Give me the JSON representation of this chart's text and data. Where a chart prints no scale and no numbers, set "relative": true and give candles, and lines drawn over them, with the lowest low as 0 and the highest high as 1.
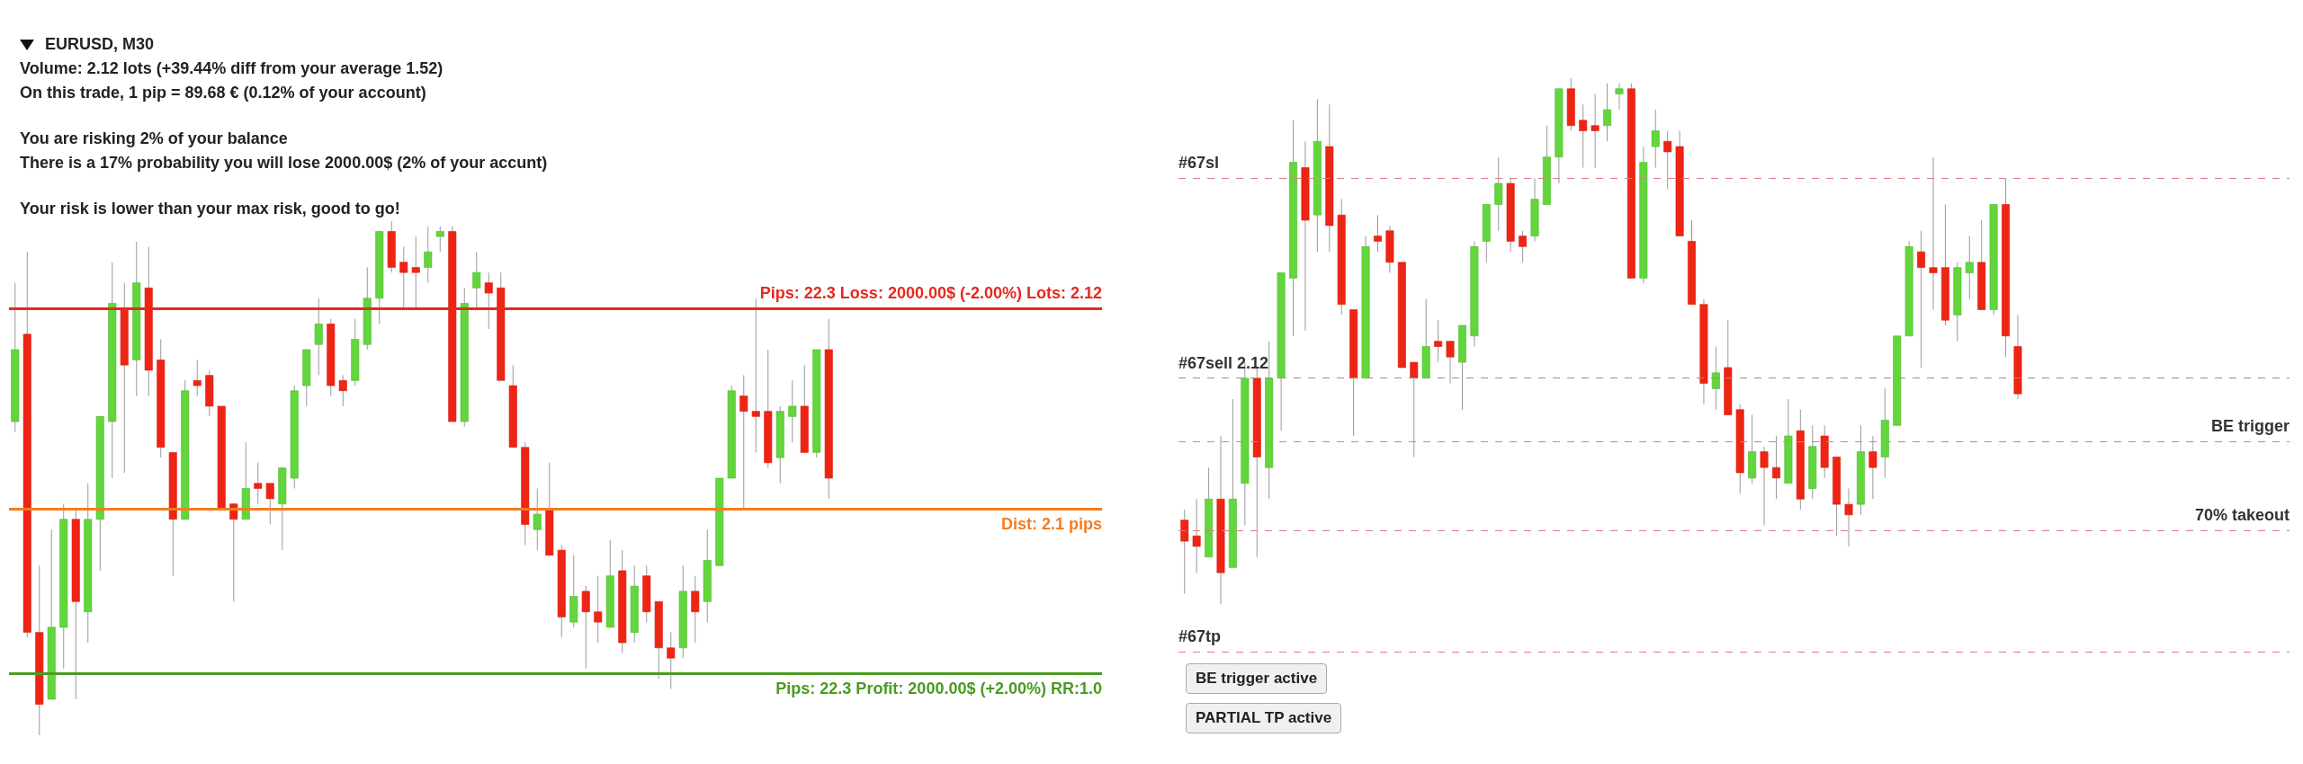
{
  "chart_data": [
    {
      "type": "candlestick",
      "title": "EURUSD, M30",
      "relative": true,
      "annotations": [
        "Volume: 2.12 lots (+39.44% diff from your average 1.52)",
        "On this trade, 1 pip = 89.68 € (0.12% of your account)",
        "You are risking 2% of your balance",
        "There is a 17%  probability you will lose 2000.00$ (2% of your accunt)",
        "Your risk is lower than your max risk, good to go!",
        "Pips: 22.3 Loss: 2000.00$ (-2.00%) Lots: 2.12",
        "Dist: 2.1 pips",
        "Pips: 22.3 Profit: 2000.00$ (+2.00%) RR:1.0"
      ],
      "categories": [
        null,
        null,
        null,
        null,
        null,
        null,
        null,
        null,
        null,
        null,
        null,
        null,
        null,
        null,
        null,
        null,
        null,
        null,
        null,
        null,
        null,
        null,
        null,
        null,
        null,
        null,
        null,
        null,
        null,
        null,
        null,
        null,
        null,
        null,
        null,
        null,
        null,
        null,
        null,
        null,
        null,
        null,
        null,
        null,
        null,
        null,
        null,
        null,
        null,
        null,
        null,
        null,
        null,
        null,
        null,
        null,
        null,
        null,
        null,
        null,
        null,
        null,
        null,
        null,
        null,
        null,
        null,
        null,
        null,
        null,
        null,
        null,
        null,
        null,
        null,
        null,
        null,
        null,
        null,
        null,
        null,
        null,
        null,
        null,
        null,
        null,
        null,
        null,
        null,
        null
      ],
      "ohlc": [
        [
          0.61,
          0.88,
          0.59,
          0.75
        ],
        [
          0.78,
          0.94,
          0.19,
          0.2
        ],
        [
          0.2,
          0.33,
          0,
          0.06
        ],
        [
          0.07,
          0.4,
          0.07,
          0.21
        ],
        [
          0.21,
          0.45,
          0.13,
          0.42
        ],
        [
          0.42,
          0.44,
          0.07,
          0.26
        ],
        [
          0.24,
          0.49,
          0.18,
          0.42
        ],
        [
          0.42,
          0.62,
          0.32,
          0.62
        ],
        [
          0.61,
          0.92,
          0.5,
          0.84
        ],
        [
          0.83,
          0.88,
          0.51,
          0.72
        ],
        [
          0.73,
          0.96,
          0.66,
          0.88
        ],
        [
          0.87,
          0.95,
          0.66,
          0.71
        ],
        [
          0.73,
          0.77,
          0.54,
          0.56
        ],
        [
          0.55,
          0.55,
          0.31,
          0.42
        ],
        [
          0.42,
          0.69,
          0.42,
          0.67
        ],
        [
          0.69,
          0.73,
          0.66,
          0.68
        ],
        [
          0.7,
          0.71,
          0.62,
          0.64
        ],
        [
          0.64,
          0.64,
          0.44,
          0.44
        ],
        [
          0.45,
          0.45,
          0.26,
          0.42
        ],
        [
          0.42,
          0.57,
          0.42,
          0.48
        ],
        [
          0.49,
          0.53,
          0.45,
          0.48
        ],
        [
          0.49,
          0.49,
          0.41,
          0.46
        ],
        [
          0.45,
          0.52,
          0.36,
          0.52
        ],
        [
          0.5,
          0.68,
          0.48,
          0.67
        ],
        [
          0.68,
          0.75,
          0.64,
          0.75
        ],
        [
          0.76,
          0.85,
          0.7,
          0.8
        ],
        [
          0.8,
          0.81,
          0.66,
          0.68
        ],
        [
          0.69,
          0.7,
          0.64,
          0.67
        ],
        [
          0.69,
          0.81,
          0.68,
          0.77
        ],
        [
          0.76,
          0.91,
          0.75,
          0.85
        ],
        [
          0.85,
          0.98,
          0.8,
          0.98
        ],
        [
          0.98,
          1.0,
          0.9,
          0.91
        ],
        [
          0.92,
          0.95,
          0.83,
          0.9
        ],
        [
          0.91,
          0.97,
          0.83,
          0.9
        ],
        [
          0.91,
          0.99,
          0.88,
          0.94
        ],
        [
          0.97,
          0.99,
          0.94,
          0.98
        ],
        [
          0.98,
          0.99,
          0.61,
          0.61
        ],
        [
          0.61,
          0.87,
          0.6,
          0.84
        ],
        [
          0.87,
          0.94,
          0.83,
          0.9
        ],
        [
          0.88,
          0.9,
          0.79,
          0.86
        ],
        [
          0.87,
          0.9,
          0.69,
          0.69
        ],
        [
          0.68,
          0.72,
          0.56,
          0.56
        ],
        [
          0.56,
          0.57,
          0.37,
          0.41
        ],
        [
          0.4,
          0.48,
          0.36,
          0.43
        ],
        [
          0.44,
          0.53,
          0.35,
          0.35
        ],
        [
          0.36,
          0.37,
          0.19,
          0.23
        ],
        [
          0.22,
          0.35,
          0.21,
          0.27
        ],
        [
          0.28,
          0.29,
          0.13,
          0.24
        ],
        [
          0.24,
          0.31,
          0.18,
          0.22
        ],
        [
          0.21,
          0.38,
          0.21,
          0.31
        ],
        [
          0.32,
          0.36,
          0.16,
          0.18
        ],
        [
          0.2,
          0.33,
          0.18,
          0.29
        ],
        [
          0.31,
          0.33,
          0.22,
          0.24
        ],
        [
          0.26,
          0.26,
          0.11,
          0.17
        ],
        [
          0.17,
          0.2,
          0.09,
          0.15
        ],
        [
          0.17,
          0.33,
          0.15,
          0.28
        ],
        [
          0.28,
          0.31,
          0.18,
          0.24
        ],
        [
          0.26,
          0.4,
          0.22,
          0.34
        ],
        [
          0.33,
          0.5,
          0.33,
          0.5
        ],
        [
          0.5,
          0.68,
          0.5,
          0.67
        ],
        [
          0.66,
          0.7,
          0.44,
          0.63
        ],
        [
          0.63,
          0.85,
          0.55,
          0.62
        ],
        [
          0.63,
          0.75,
          0.52,
          0.53
        ],
        [
          0.54,
          0.64,
          0.49,
          0.63
        ],
        [
          0.62,
          0.69,
          0.57,
          0.64
        ],
        [
          0.64,
          0.72,
          0.55,
          0.55
        ],
        [
          0.55,
          0.75,
          0.54,
          0.75
        ],
        [
          0.75,
          0.81,
          0.46,
          0.5
        ],
        null,
        null,
        null,
        null,
        null,
        null,
        null,
        null,
        null,
        null,
        null,
        null,
        null,
        null,
        null,
        null,
        null,
        null,
        null,
        null,
        null,
        null
      ],
      "ref_lines": [
        {
          "axis": "y",
          "value": 0.83,
          "color": "#e8281e",
          "line_style": "solid"
        },
        {
          "axis": "y",
          "value": 0.44,
          "color": "#f57c1f",
          "line_style": "solid"
        },
        {
          "axis": "y",
          "value": 0.12,
          "color": "#4a9a22",
          "line_style": "solid"
        }
      ]
    },
    {
      "type": "candlestick",
      "relative": true,
      "annotations": [
        "BE trigger active",
        "PARTIAL TP active"
      ],
      "categories": [
        null,
        null,
        null,
        null,
        null,
        null,
        null,
        null,
        null,
        null,
        null,
        null,
        null,
        null,
        null,
        null,
        null,
        null,
        null,
        null,
        null,
        null,
        null,
        null,
        null,
        null,
        null,
        null,
        null,
        null,
        null,
        null,
        null,
        null,
        null,
        null,
        null,
        null,
        null,
        null,
        null,
        null,
        null,
        null,
        null,
        null,
        null,
        null,
        null,
        null,
        null,
        null,
        null,
        null,
        null,
        null,
        null,
        null,
        null,
        null,
        null,
        null,
        null,
        null,
        null,
        null,
        null,
        null,
        null,
        null,
        null,
        null,
        null,
        null,
        null,
        null,
        null,
        null,
        null,
        null,
        null,
        null,
        null,
        null,
        null,
        null,
        null,
        null,
        null,
        null,
        null,
        null
      ],
      "ohlc": [
        [
          0.16,
          0.18,
          0.02,
          0.12
        ],
        [
          0.13,
          0.2,
          0.06,
          0.11
        ],
        [
          0.09,
          0.26,
          0.09,
          0.2
        ],
        [
          0.2,
          0.32,
          0,
          0.06
        ],
        [
          0.07,
          0.39,
          0.07,
          0.2
        ],
        [
          0.23,
          0.46,
          0.15,
          0.43
        ],
        [
          0.43,
          0.45,
          0.09,
          0.28
        ],
        [
          0.26,
          0.5,
          0.2,
          0.43
        ],
        [
          0.43,
          0.63,
          0.33,
          0.63
        ],
        [
          0.62,
          0.92,
          0.51,
          0.84
        ],
        [
          0.83,
          0.88,
          0.52,
          0.73
        ],
        [
          0.74,
          0.96,
          0.67,
          0.88
        ],
        [
          0.87,
          0.95,
          0.67,
          0.72
        ],
        [
          0.74,
          0.77,
          0.55,
          0.57
        ],
        [
          0.56,
          0.56,
          0.32,
          0.43
        ],
        [
          0.43,
          0.7,
          0.43,
          0.68
        ],
        [
          0.7,
          0.74,
          0.67,
          0.69
        ],
        [
          0.71,
          0.72,
          0.63,
          0.65
        ],
        [
          0.65,
          0.65,
          0.45,
          0.45
        ],
        [
          0.46,
          0.46,
          0.28,
          0.43
        ],
        [
          0.43,
          0.58,
          0.43,
          0.49
        ],
        [
          0.5,
          0.54,
          0.46,
          0.49
        ],
        [
          0.5,
          0.5,
          0.42,
          0.47
        ],
        [
          0.46,
          0.53,
          0.37,
          0.53
        ],
        [
          0.51,
          0.69,
          0.49,
          0.68
        ],
        [
          0.69,
          0.76,
          0.65,
          0.76
        ],
        [
          0.76,
          0.85,
          0.71,
          0.8
        ],
        [
          0.8,
          0.81,
          0.67,
          0.69
        ],
        [
          0.7,
          0.71,
          0.65,
          0.68
        ],
        [
          0.7,
          0.81,
          0.69,
          0.77
        ],
        [
          0.76,
          0.91,
          0.76,
          0.85
        ],
        [
          0.85,
          0.98,
          0.8,
          0.98
        ],
        [
          0.98,
          1.0,
          0.9,
          0.91
        ],
        [
          0.92,
          0.95,
          0.83,
          0.9
        ],
        [
          0.91,
          0.97,
          0.83,
          0.9
        ],
        [
          0.91,
          0.99,
          0.88,
          0.94
        ],
        [
          0.97,
          0.99,
          0.94,
          0.98
        ],
        [
          0.98,
          0.99,
          0.62,
          0.62
        ],
        [
          0.62,
          0.87,
          0.61,
          0.84
        ],
        [
          0.87,
          0.94,
          0.83,
          0.9
        ],
        [
          0.88,
          0.9,
          0.79,
          0.86
        ],
        [
          0.87,
          0.9,
          0.7,
          0.7
        ],
        [
          0.69,
          0.73,
          0.57,
          0.57
        ],
        [
          0.57,
          0.58,
          0.38,
          0.42
        ],
        [
          0.41,
          0.49,
          0.37,
          0.44
        ],
        [
          0.45,
          0.54,
          0.36,
          0.36
        ],
        [
          0.37,
          0.38,
          0.21,
          0.25
        ],
        [
          0.24,
          0.36,
          0.23,
          0.29
        ],
        [
          0.29,
          0.3,
          0.15,
          0.26
        ],
        [
          0.26,
          0.32,
          0.2,
          0.24
        ],
        [
          0.23,
          0.39,
          0.23,
          0.32
        ],
        [
          0.33,
          0.37,
          0.18,
          0.2
        ],
        [
          0.22,
          0.34,
          0.2,
          0.3
        ],
        [
          0.32,
          0.34,
          0.24,
          0.26
        ],
        [
          0.28,
          0.28,
          0.13,
          0.19
        ],
        [
          0.19,
          0.22,
          0.11,
          0.17
        ],
        [
          0.19,
          0.34,
          0.17,
          0.29
        ],
        [
          0.29,
          0.32,
          0.2,
          0.26
        ],
        [
          0.28,
          0.41,
          0.24,
          0.35
        ],
        [
          0.34,
          0.51,
          0.34,
          0.51
        ],
        [
          0.51,
          0.69,
          0.51,
          0.68
        ],
        [
          0.67,
          0.71,
          0.45,
          0.64
        ],
        [
          0.64,
          0.85,
          0.56,
          0.63
        ],
        [
          0.64,
          0.76,
          0.53,
          0.54
        ],
        [
          0.55,
          0.65,
          0.5,
          0.64
        ],
        [
          0.63,
          0.7,
          0.58,
          0.65
        ],
        [
          0.65,
          0.73,
          0.56,
          0.56
        ],
        [
          0.56,
          0.76,
          0.55,
          0.76
        ],
        [
          0.76,
          0.81,
          0.47,
          0.51
        ],
        [
          0.49,
          0.55,
          0.39,
          0.4
        ],
        null,
        null,
        null,
        null,
        null,
        null,
        null,
        null,
        null,
        null,
        null,
        null,
        null,
        null,
        null,
        null,
        null,
        null,
        null,
        null,
        null,
        null
      ],
      "ref_lines": [
        {
          "axis": "y",
          "value": 0.81,
          "label": "#67sl",
          "color": "#e07a80",
          "line_style": "dashed"
        },
        {
          "axis": "y",
          "value": 0.43,
          "label": "#67sell 2.12",
          "color": "#8a9a8a",
          "line_style": "dashed"
        },
        {
          "axis": "y",
          "value": 0.31,
          "label": "BE trigger",
          "color": "#e07a80",
          "line_style": "dashed"
        },
        {
          "axis": "y",
          "value": 0.14,
          "label": "70% takeout",
          "color": "#e07a80",
          "line_style": "dashed"
        },
        {
          "axis": "y",
          "value": -0.09,
          "label": "#67tp",
          "color": "#e07a80",
          "line_style": "dashed"
        }
      ]
    }
  ]
}
